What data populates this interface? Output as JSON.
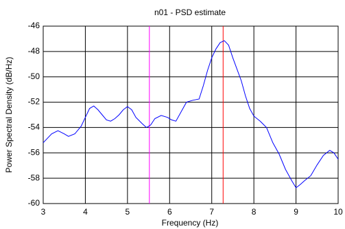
{
  "chart_data": {
    "type": "line",
    "title": "n01  -  PSD estimate",
    "x_label": "Frequency (Hz)",
    "y_label": "Power Spectral Density (dB/Hz)",
    "x": [
      3,
      3.2,
      3.35,
      3.5,
      3.6,
      3.75,
      3.9,
      4.0,
      4.1,
      4.2,
      4.3,
      4.4,
      4.5,
      4.6,
      4.7,
      4.8,
      4.9,
      5.0,
      5.1,
      5.2,
      5.35,
      5.45,
      5.55,
      5.65,
      5.8,
      5.95,
      6.05,
      6.15,
      6.3,
      6.4,
      6.55,
      6.7,
      6.8,
      6.9,
      7.0,
      7.1,
      7.2,
      7.3,
      7.4,
      7.5,
      7.6,
      7.7,
      7.8,
      7.9,
      8.0,
      8.15,
      8.3,
      8.45,
      8.6,
      8.75,
      8.9,
      9.0,
      9.1,
      9.2,
      9.35,
      9.5,
      9.65,
      9.8,
      9.9,
      10
    ],
    "series": [
      {
        "color": "#0000ff",
        "values": [
          -55.2,
          -54.5,
          -54.25,
          -54.5,
          -54.7,
          -54.5,
          -53.9,
          -53.2,
          -52.5,
          -52.3,
          -52.6,
          -53.0,
          -53.4,
          -53.5,
          -53.3,
          -53.0,
          -52.6,
          -52.35,
          -52.6,
          -53.2,
          -53.7,
          -54.0,
          -53.8,
          -53.3,
          -53.05,
          -53.2,
          -53.4,
          -53.5,
          -52.6,
          -52.0,
          -51.85,
          -51.75,
          -50.7,
          -49.5,
          -48.5,
          -47.8,
          -47.3,
          -47.15,
          -47.5,
          -48.5,
          -49.4,
          -50.3,
          -51.5,
          -52.5,
          -53.1,
          -53.5,
          -54.0,
          -55.2,
          -56.1,
          -57.3,
          -58.2,
          -58.75,
          -58.5,
          -58.2,
          -57.8,
          -56.95,
          -56.2,
          -55.8,
          -56.0,
          -56.5
        ]
      }
    ],
    "vlines": [
      {
        "x": 5.52,
        "color": "#ff00ff"
      },
      {
        "x": 7.27,
        "color": "#ff0000"
      }
    ],
    "xlim": [
      3,
      10
    ],
    "ylim": [
      -60,
      -46
    ],
    "xticks": [
      3,
      4,
      5,
      6,
      7,
      8,
      9,
      10
    ],
    "yticks": [
      -60,
      -58,
      -56,
      -54,
      -52,
      -50,
      -48,
      -46
    ],
    "grid": true
  }
}
